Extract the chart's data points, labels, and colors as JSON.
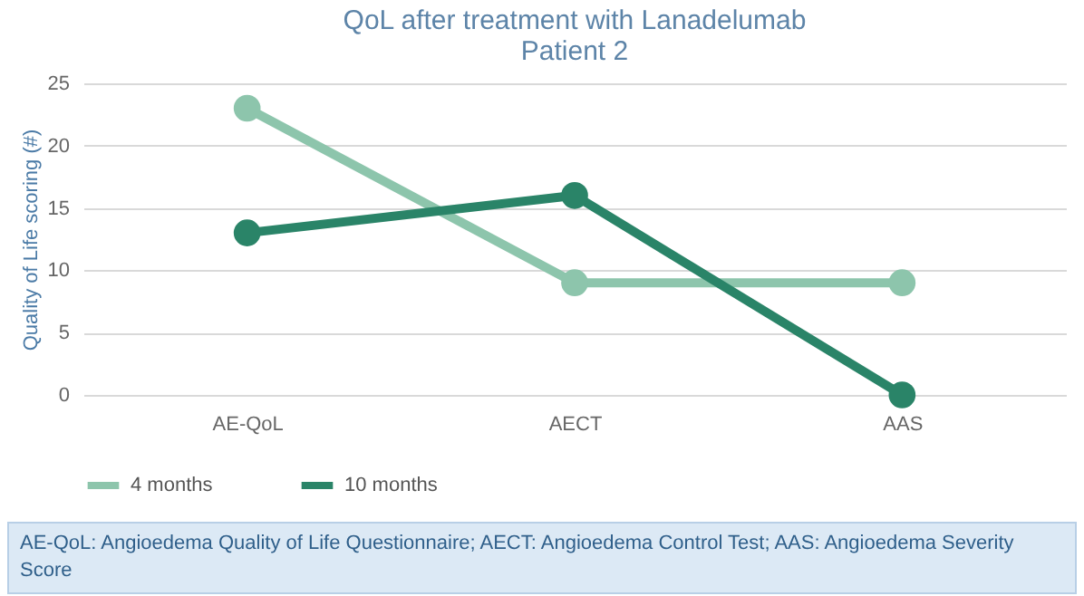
{
  "chart_data": {
    "type": "line",
    "title": "QoL after treatment with Lanadelumab",
    "subtitle": "Patient 2",
    "ylabel": "Quality of Life scoring (#)",
    "categories": [
      "AE-QoL",
      "AECT",
      "AAS"
    ],
    "series": [
      {
        "name": "4 months",
        "color": "#8dc5ac",
        "values": [
          23,
          9,
          9
        ]
      },
      {
        "name": "10 months",
        "color": "#2a8468",
        "values": [
          13,
          16,
          0
        ]
      }
    ],
    "ylim": [
      0,
      25
    ],
    "yticks": [
      0,
      5,
      10,
      15,
      20,
      25
    ],
    "grid": "y",
    "legend": "bottom",
    "marker": "circle",
    "line_style": "solid",
    "annotations": [
      "AE-QoL: Angioedema Quality of Life Questionnaire; AECT: Angioedema Control Test; AAS: Angioedema Severity Score"
    ]
  }
}
